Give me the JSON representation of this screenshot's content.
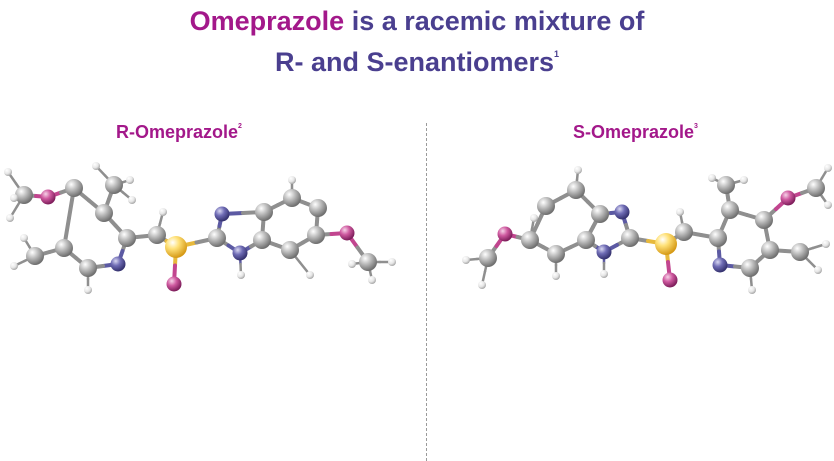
{
  "title": {
    "part1": "Omeprazole",
    "part2": " is a racemic mixture of",
    "part3": "R- and S-enantiomers",
    "ref": "1"
  },
  "left": {
    "label": "R-Omeprazole",
    "ref": "2"
  },
  "right": {
    "label": "S-Omeprazole",
    "ref": "3"
  },
  "colors": {
    "accent": "#a3188a",
    "title": "#4a3f8f",
    "carbon": "#9e9e9e",
    "nitrogen": "#5c5aa3",
    "oxygen": "#c2458f",
    "sulfur": "#f2c94c",
    "hydrogen": "#e8e8e8"
  }
}
